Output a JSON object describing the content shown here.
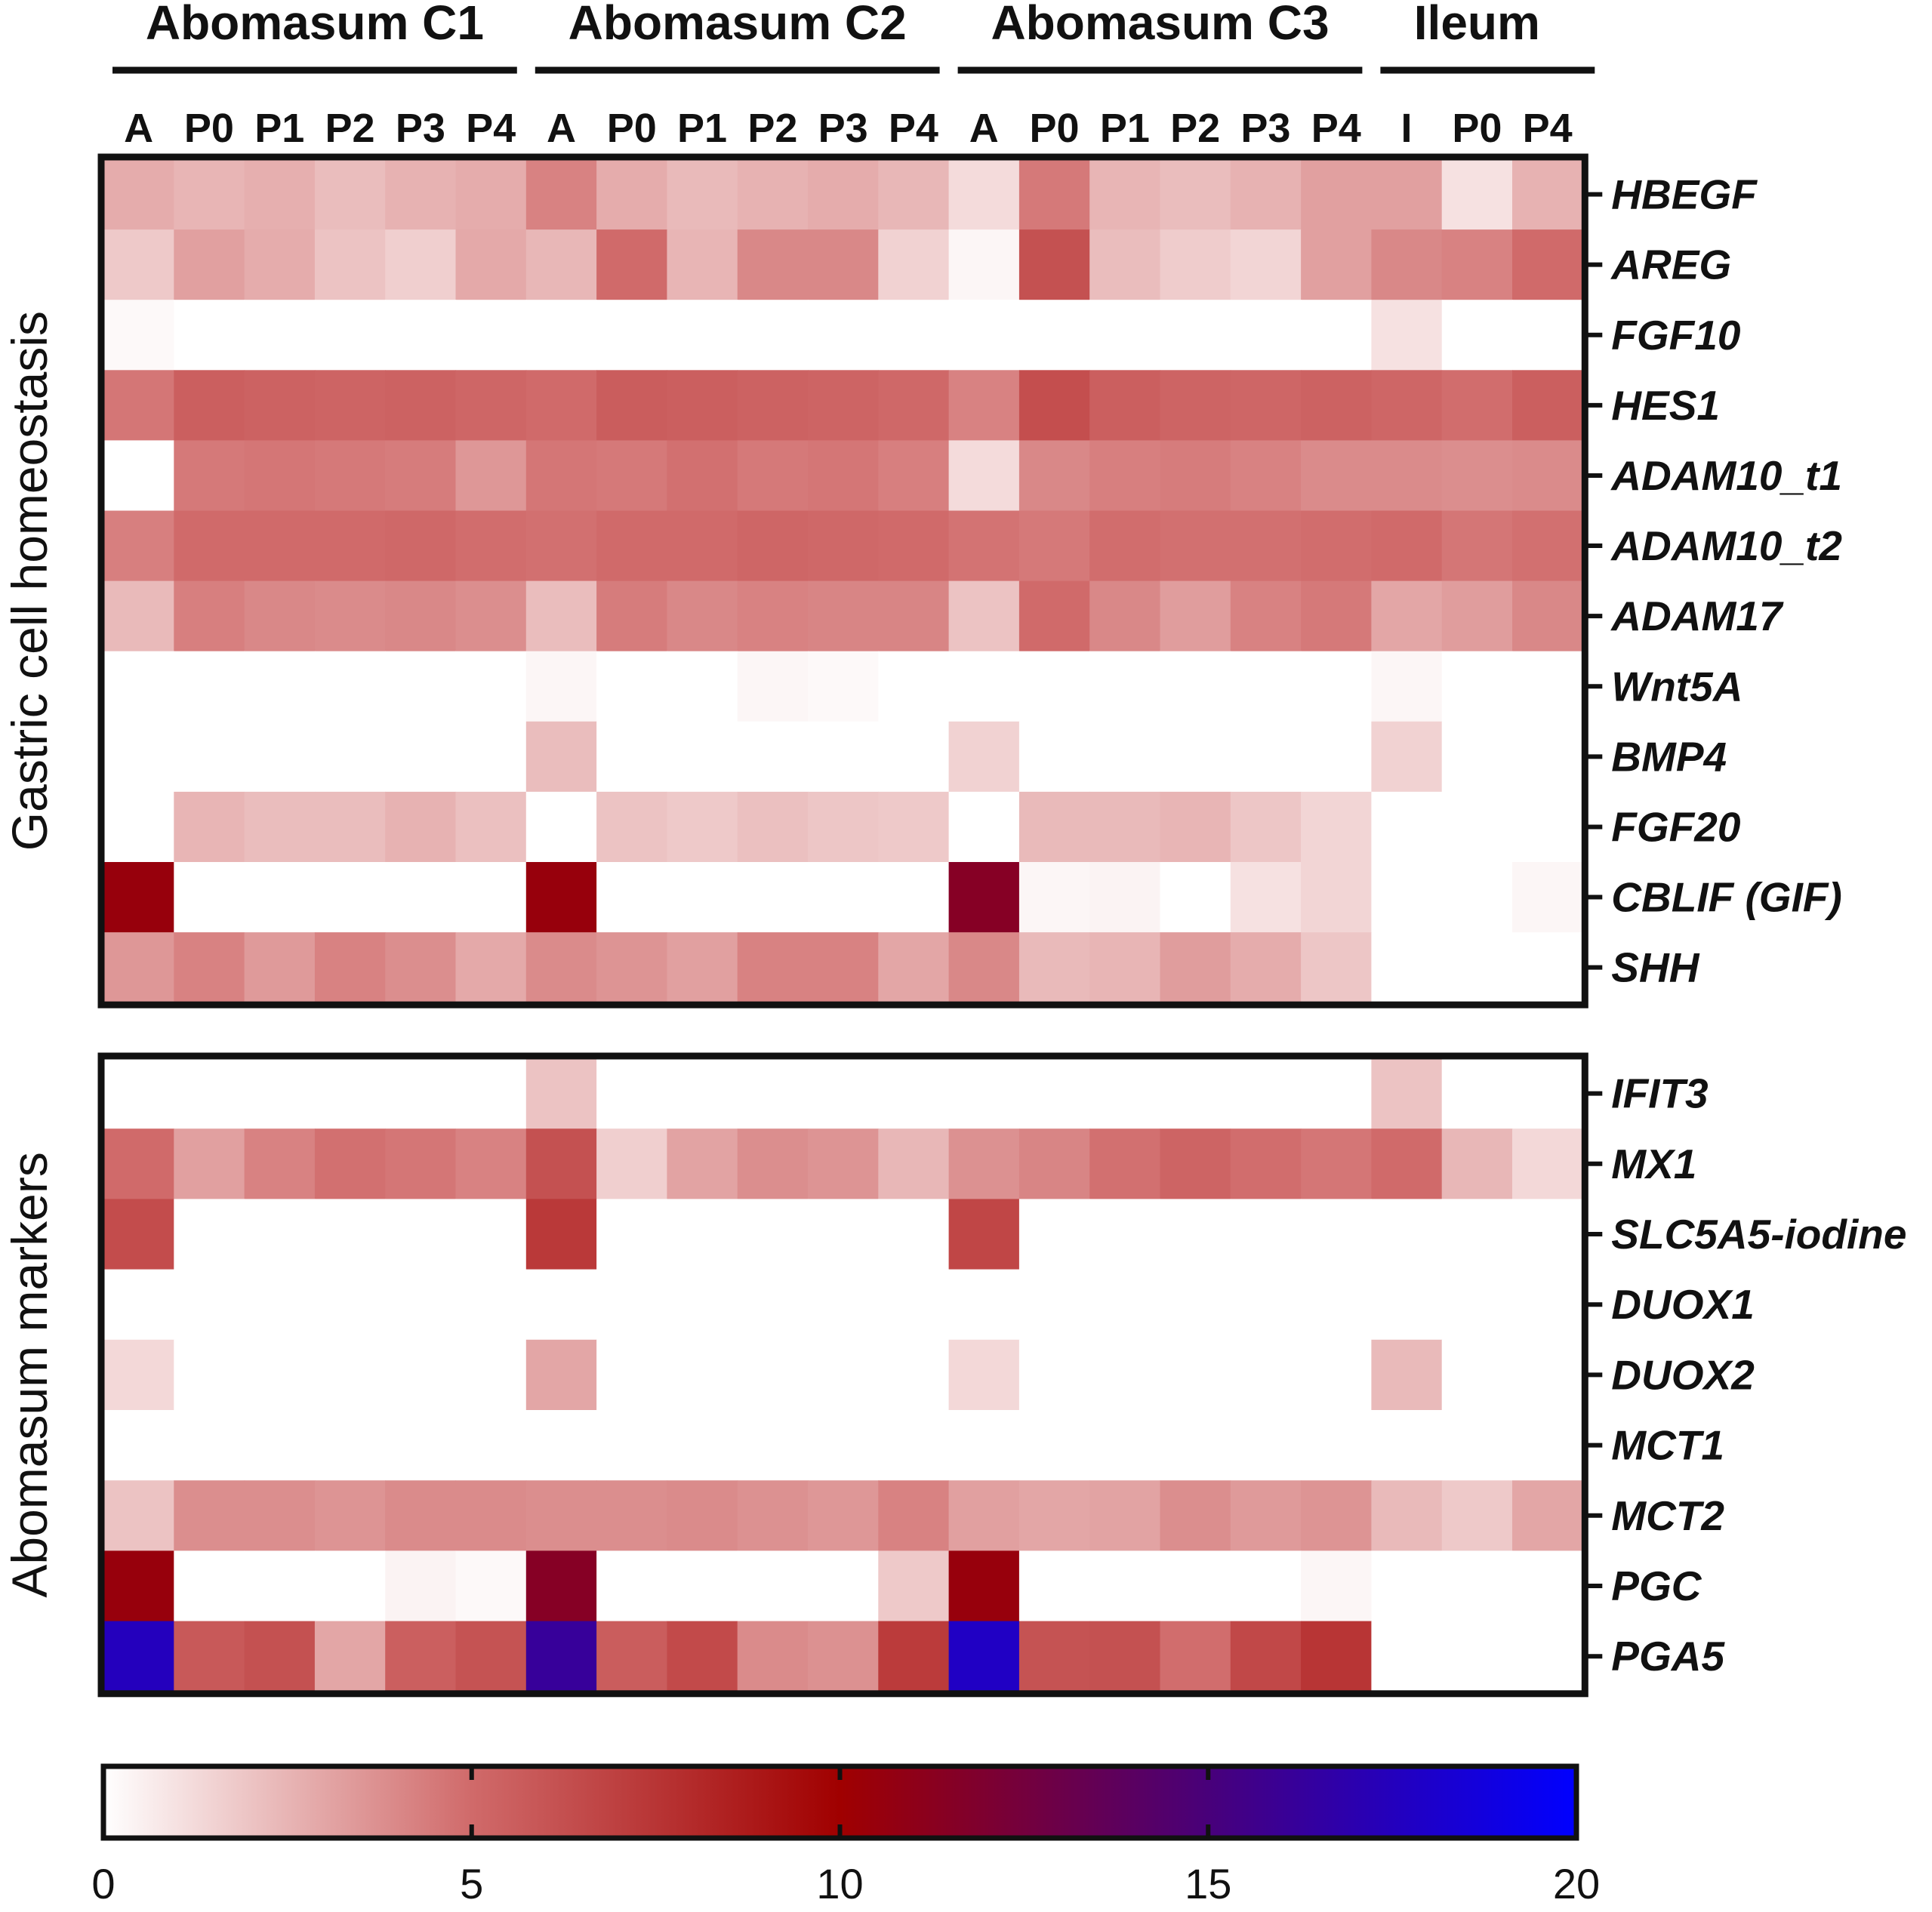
{
  "chart_data": {
    "type": "heatmap",
    "groups": [
      {
        "name": "Abomasum C1",
        "columns": [
          "A",
          "P0",
          "P1",
          "P2",
          "P3",
          "P4"
        ]
      },
      {
        "name": "Abomasum C2",
        "columns": [
          "A",
          "P0",
          "P1",
          "P2",
          "P3",
          "P4"
        ]
      },
      {
        "name": "Abomasum C3",
        "columns": [
          "A",
          "P0",
          "P1",
          "P2",
          "P3",
          "P4"
        ]
      },
      {
        "name": "Ileum",
        "columns": [
          "I",
          "P0",
          "P4"
        ]
      }
    ],
    "panels": [
      {
        "title": "Gastric cell homeostasis",
        "rows": [
          {
            "gene": "HBEGF",
            "values": [
              2.8,
              2.5,
              2.7,
              2.2,
              2.6,
              2.8,
              4.2,
              2.8,
              2.3,
              2.6,
              2.8,
              2.4,
              1.2,
              4.5,
              2.5,
              2.2,
              2.6,
              3.2,
              3.2,
              1.0,
              2.6
            ]
          },
          {
            "gene": "AREG",
            "values": [
              1.8,
              3.2,
              2.8,
              2.0,
              1.6,
              2.9,
              2.4,
              5.0,
              2.5,
              4.0,
              4.0,
              1.5,
              0.3,
              6.2,
              2.2,
              1.7,
              1.4,
              3.2,
              4.0,
              4.2,
              5.0
            ]
          },
          {
            "gene": "FGF10",
            "values": [
              0.2,
              0,
              0,
              0,
              0,
              0,
              0,
              0,
              0,
              0,
              0,
              0,
              0,
              0,
              0,
              0,
              0,
              0,
              1.0,
              0,
              0
            ]
          },
          {
            "gene": "HES1",
            "values": [
              4.6,
              5.5,
              5.4,
              5.3,
              5.4,
              5.2,
              5.0,
              5.6,
              5.5,
              5.4,
              5.3,
              5.1,
              4.2,
              6.3,
              5.5,
              5.3,
              5.2,
              5.4,
              5.2,
              4.9,
              5.5
            ]
          },
          {
            "gene": "ADAM10_t1",
            "values": [
              0,
              4.5,
              4.6,
              4.5,
              4.4,
              3.5,
              4.6,
              4.5,
              4.8,
              4.5,
              4.6,
              4.3,
              1.2,
              4.0,
              4.3,
              4.4,
              4.2,
              3.9,
              3.9,
              3.8,
              3.9
            ]
          },
          {
            "gene": "ADAM10_t2",
            "values": [
              4.3,
              5.0,
              5.0,
              5.0,
              5.1,
              4.9,
              4.8,
              5.0,
              5.0,
              5.2,
              5.1,
              5.0,
              4.7,
              4.5,
              4.9,
              4.8,
              4.8,
              4.9,
              5.0,
              4.6,
              4.8
            ]
          },
          {
            "gene": "ADAM17",
            "values": [
              2.3,
              4.3,
              4.0,
              3.9,
              4.0,
              3.8,
              2.2,
              4.4,
              4.0,
              4.2,
              4.1,
              4.1,
              2.0,
              5.0,
              4.0,
              3.3,
              4.2,
              4.5,
              3.0,
              3.3,
              4.0
            ]
          },
          {
            "gene": "Wnt5A",
            "values": [
              0,
              0,
              0,
              0,
              0,
              0,
              0.3,
              0,
              0,
              0.3,
              0.2,
              0,
              0,
              0,
              0,
              0,
              0,
              0,
              0.3,
              0,
              0
            ]
          },
          {
            "gene": "BMP4",
            "values": [
              0,
              0,
              0,
              0,
              0,
              0,
              2.2,
              0,
              0,
              0,
              0,
              0,
              1.5,
              0,
              0,
              0,
              0,
              0,
              1.5,
              0,
              0
            ]
          },
          {
            "gene": "FGF20",
            "values": [
              0,
              2.5,
              2.2,
              2.2,
              2.6,
              2.1,
              0,
              2.0,
              1.8,
              2.1,
              1.9,
              1.8,
              0,
              2.3,
              2.3,
              2.5,
              1.9,
              1.4,
              0,
              0,
              0
            ]
          },
          {
            "gene": "CBLIF (GIF)",
            "values": [
              10.5,
              0,
              0,
              0,
              0,
              0,
              10.5,
              0,
              0,
              0,
              0,
              0,
              11.5,
              0.3,
              0.4,
              0,
              1.0,
              1.4,
              0,
              0,
              0.3
            ]
          },
          {
            "gene": "SHH",
            "values": [
              3.5,
              4.2,
              3.4,
              4.2,
              3.8,
              2.9,
              3.9,
              3.6,
              3.2,
              4.2,
              4.2,
              3.0,
              4.0,
              2.3,
              2.5,
              3.3,
              2.8,
              1.9,
              0,
              0,
              0
            ]
          }
        ]
      },
      {
        "title": "Abomasum markers",
        "rows": [
          {
            "gene": "IFIT3",
            "values": [
              0,
              0,
              0,
              0,
              0,
              0,
              2.0,
              0,
              0,
              0,
              0,
              0,
              0,
              0,
              0,
              0,
              0,
              0,
              2.0,
              0,
              0
            ]
          },
          {
            "gene": "MX1",
            "values": [
              5.0,
              3.2,
              4.2,
              4.8,
              4.6,
              4.2,
              6.2,
              1.6,
              3.1,
              3.8,
              3.6,
              2.4,
              3.7,
              4.1,
              4.8,
              5.3,
              4.9,
              4.6,
              5.0,
              2.4,
              1.3
            ]
          },
          {
            "gene": "SLC5A5-iodine",
            "values": [
              6.4,
              0,
              0,
              0,
              0,
              0,
              7.3,
              0,
              0,
              0,
              0,
              0,
              6.7,
              0,
              0,
              0,
              0,
              0,
              0,
              0,
              0
            ]
          },
          {
            "gene": "DUOX1",
            "values": [
              0,
              0,
              0,
              0,
              0,
              0,
              0,
              0,
              0,
              0,
              0,
              0,
              0,
              0,
              0,
              0,
              0,
              0,
              0,
              0,
              0
            ]
          },
          {
            "gene": "DUOX2",
            "values": [
              1.3,
              0,
              0,
              0,
              0,
              0,
              3.0,
              0,
              0,
              0,
              0,
              0,
              1.3,
              0,
              0,
              0,
              0,
              0,
              2.3,
              0,
              0
            ]
          },
          {
            "gene": "MCT1",
            "values": [
              0,
              0,
              0,
              0,
              0,
              0,
              0,
              0,
              0,
              0,
              0,
              0,
              0,
              0,
              0,
              0,
              0,
              0,
              0,
              0,
              0
            ]
          },
          {
            "gene": "MCT2",
            "values": [
              2.0,
              3.8,
              3.8,
              3.6,
              3.9,
              3.9,
              3.8,
              3.8,
              3.9,
              3.7,
              3.5,
              4.2,
              3.2,
              3.0,
              3.1,
              3.8,
              3.4,
              3.6,
              2.3,
              1.8,
              3.0
            ]
          },
          {
            "gene": "PGC",
            "values": [
              10.5,
              0,
              0,
              0,
              0.4,
              0.2,
              11.5,
              0,
              0,
              0,
              0,
              1.8,
              10.5,
              0,
              0,
              0,
              0,
              0.3,
              0,
              0,
              0
            ]
          },
          {
            "gene": "PGA5",
            "values": [
              17.5,
              5.8,
              6.2,
              3.0,
              5.5,
              6.1,
              16.2,
              5.6,
              6.5,
              3.9,
              3.7,
              7.2,
              17.8,
              6.1,
              6.2,
              4.9,
              6.6,
              7.5,
              0,
              0,
              0
            ]
          }
        ]
      }
    ],
    "colorbar": {
      "range": [
        0,
        20
      ],
      "ticks": [
        "0",
        "5",
        "10",
        "15",
        "20"
      ],
      "stops": [
        {
          "value": 0,
          "color": "#ffffff"
        },
        {
          "value": 5,
          "color": "#d06a6a"
        },
        {
          "value": 10,
          "color": "#a00000"
        },
        {
          "value": 15,
          "color": "#48007a"
        },
        {
          "value": 20,
          "color": "#0000ff"
        }
      ]
    }
  }
}
